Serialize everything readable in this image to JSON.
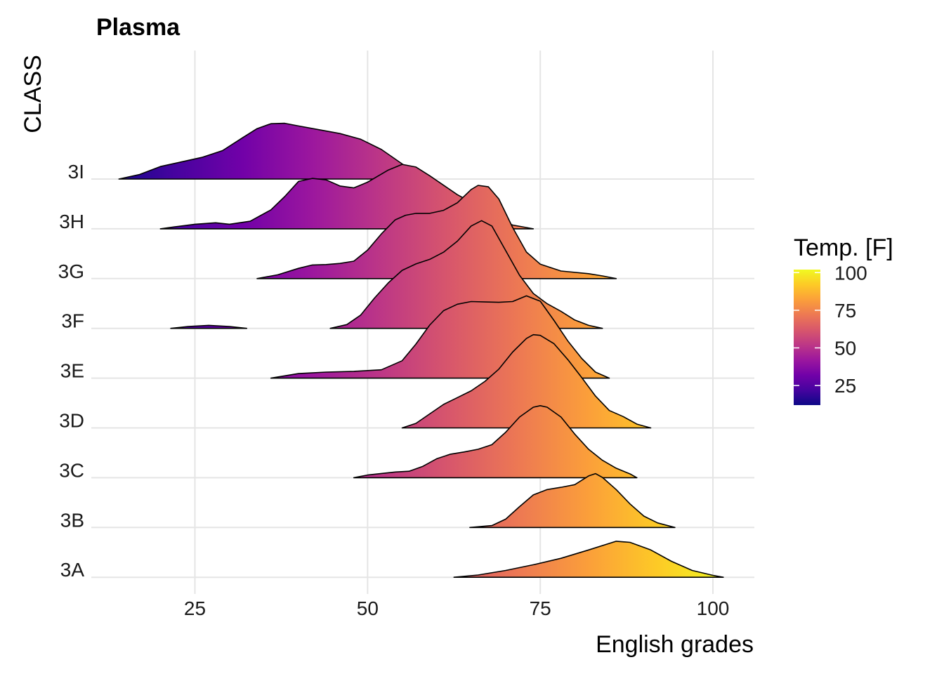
{
  "chart_data": {
    "type": "ridgeline",
    "title": "Plasma",
    "xlabel": "English grades",
    "ylabel": "CLASS",
    "xlim": [
      10,
      106
    ],
    "x_ticks": [
      25,
      50,
      75,
      100
    ],
    "categories": [
      "3A",
      "3B",
      "3C",
      "3D",
      "3E",
      "3F",
      "3G",
      "3H",
      "3I"
    ],
    "grid": true,
    "color_scale": {
      "name": "plasma",
      "title": "Temp. [F]",
      "range": [
        12,
        102
      ],
      "ticks": [
        25,
        50,
        75,
        100
      ],
      "stops": [
        "#0d0887",
        "#46039f",
        "#7201a8",
        "#9c179e",
        "#bd3786",
        "#d8576b",
        "#ed7953",
        "#fb9f3a",
        "#fdca26",
        "#f0f921"
      ]
    },
    "legend_position": "right",
    "series": [
      {
        "category": "3A",
        "points": [
          [
            62.5,
            0
          ],
          [
            66,
            0.06
          ],
          [
            70,
            0.18
          ],
          [
            74,
            0.33
          ],
          [
            78,
            0.5
          ],
          [
            82,
            0.72
          ],
          [
            86,
            0.95
          ],
          [
            88,
            0.92
          ],
          [
            91,
            0.72
          ],
          [
            94,
            0.42
          ],
          [
            97,
            0.18
          ],
          [
            100,
            0.05
          ],
          [
            101.5,
            0
          ]
        ]
      },
      {
        "category": "3B",
        "points": [
          [
            64.8,
            0
          ],
          [
            68,
            0.05
          ],
          [
            70,
            0.22
          ],
          [
            72,
            0.55
          ],
          [
            74,
            0.86
          ],
          [
            76,
            1.0
          ],
          [
            78,
            1.06
          ],
          [
            80,
            1.13
          ],
          [
            82,
            1.36
          ],
          [
            83,
            1.42
          ],
          [
            84,
            1.32
          ],
          [
            86,
            1.0
          ],
          [
            88,
            0.62
          ],
          [
            90,
            0.3
          ],
          [
            92,
            0.12
          ],
          [
            94.5,
            0
          ]
        ]
      },
      {
        "category": "3C",
        "points": [
          [
            48,
            0
          ],
          [
            50,
            0.07
          ],
          [
            54,
            0.15
          ],
          [
            56,
            0.17
          ],
          [
            58,
            0.3
          ],
          [
            60,
            0.5
          ],
          [
            62,
            0.62
          ],
          [
            64,
            0.68
          ],
          [
            66,
            0.75
          ],
          [
            68,
            0.87
          ],
          [
            70,
            1.2
          ],
          [
            72,
            1.6
          ],
          [
            74,
            1.86
          ],
          [
            75,
            1.9
          ],
          [
            76,
            1.86
          ],
          [
            78,
            1.6
          ],
          [
            80,
            1.15
          ],
          [
            82,
            0.75
          ],
          [
            84,
            0.46
          ],
          [
            86,
            0.25
          ],
          [
            88,
            0.1
          ],
          [
            89,
            0
          ]
        ]
      },
      {
        "category": "3D",
        "points": [
          [
            55,
            0
          ],
          [
            57,
            0.12
          ],
          [
            59,
            0.37
          ],
          [
            61,
            0.62
          ],
          [
            63,
            0.8
          ],
          [
            65,
            0.98
          ],
          [
            67,
            1.23
          ],
          [
            69,
            1.55
          ],
          [
            71,
            2.0
          ],
          [
            73,
            2.36
          ],
          [
            74,
            2.46
          ],
          [
            75,
            2.44
          ],
          [
            77,
            2.22
          ],
          [
            79,
            1.8
          ],
          [
            81,
            1.33
          ],
          [
            83,
            0.84
          ],
          [
            85,
            0.46
          ],
          [
            87,
            0.3
          ],
          [
            89,
            0.1
          ],
          [
            91,
            0
          ]
        ]
      },
      {
        "category": "3E",
        "points": [
          [
            36,
            0
          ],
          [
            40,
            0.12
          ],
          [
            44,
            0.16
          ],
          [
            48,
            0.18
          ],
          [
            52,
            0.22
          ],
          [
            55,
            0.46
          ],
          [
            57,
            0.9
          ],
          [
            59,
            1.4
          ],
          [
            61,
            1.78
          ],
          [
            63,
            1.95
          ],
          [
            65,
            2.02
          ],
          [
            67,
            2.01
          ],
          [
            69,
            2.0
          ],
          [
            71,
            2.02
          ],
          [
            73,
            2.17
          ],
          [
            75,
            2.03
          ],
          [
            77,
            1.52
          ],
          [
            79,
            0.98
          ],
          [
            81,
            0.52
          ],
          [
            83,
            0.16
          ],
          [
            85,
            0
          ]
        ]
      },
      {
        "category": "3F",
        "points": [
          [
            21.5,
            0
          ],
          [
            24,
            0.05
          ],
          [
            27,
            0.08
          ],
          [
            30,
            0.05
          ],
          [
            32.5,
            0
          ],
          [
            32.6,
            null
          ],
          [
            44.5,
            null
          ],
          [
            44.6,
            0
          ],
          [
            47,
            0.1
          ],
          [
            49,
            0.35
          ],
          [
            51,
            0.8
          ],
          [
            53,
            1.2
          ],
          [
            55,
            1.53
          ],
          [
            57,
            1.7
          ],
          [
            59,
            1.82
          ],
          [
            61,
            2.01
          ],
          [
            63,
            2.3
          ],
          [
            65,
            2.7
          ],
          [
            66.5,
            2.84
          ],
          [
            68,
            2.7
          ],
          [
            70,
            2.05
          ],
          [
            72,
            1.4
          ],
          [
            74,
            0.92
          ],
          [
            76,
            0.65
          ],
          [
            78,
            0.45
          ],
          [
            80,
            0.22
          ],
          [
            82,
            0.08
          ],
          [
            84,
            0
          ]
        ]
      },
      {
        "category": "3G",
        "points": [
          [
            34,
            0
          ],
          [
            37,
            0.1
          ],
          [
            40,
            0.27
          ],
          [
            42,
            0.36
          ],
          [
            44,
            0.37
          ],
          [
            46,
            0.4
          ],
          [
            48,
            0.46
          ],
          [
            50,
            0.75
          ],
          [
            52,
            1.18
          ],
          [
            54,
            1.55
          ],
          [
            55.5,
            1.67
          ],
          [
            57,
            1.72
          ],
          [
            59,
            1.72
          ],
          [
            61,
            1.8
          ],
          [
            63,
            2.0
          ],
          [
            65,
            2.35
          ],
          [
            66,
            2.46
          ],
          [
            67.5,
            2.42
          ],
          [
            69,
            2.1
          ],
          [
            71,
            1.35
          ],
          [
            73,
            0.7
          ],
          [
            75,
            0.38
          ],
          [
            78,
            0.2
          ],
          [
            82,
            0.13
          ],
          [
            84,
            0.07
          ],
          [
            86,
            0
          ]
        ]
      },
      {
        "category": "3H",
        "points": [
          [
            20,
            0
          ],
          [
            22,
            0.05
          ],
          [
            25,
            0.12
          ],
          [
            28,
            0.16
          ],
          [
            30,
            0.12
          ],
          [
            33,
            0.2
          ],
          [
            36,
            0.5
          ],
          [
            38,
            0.85
          ],
          [
            40,
            1.25
          ],
          [
            42,
            1.33
          ],
          [
            44,
            1.29
          ],
          [
            46,
            1.13
          ],
          [
            48,
            1.08
          ],
          [
            50,
            1.23
          ],
          [
            53,
            1.55
          ],
          [
            55,
            1.7
          ],
          [
            57,
            1.63
          ],
          [
            59,
            1.4
          ],
          [
            61,
            1.15
          ],
          [
            63,
            0.9
          ],
          [
            65,
            0.7
          ],
          [
            67,
            0.45
          ],
          [
            69,
            0.24
          ],
          [
            71,
            0.1
          ],
          [
            74,
            0
          ]
        ]
      },
      {
        "category": "3I",
        "points": [
          [
            14,
            0
          ],
          [
            17,
            0.12
          ],
          [
            20,
            0.33
          ],
          [
            23,
            0.45
          ],
          [
            26,
            0.57
          ],
          [
            29,
            0.75
          ],
          [
            32,
            1.1
          ],
          [
            34,
            1.33
          ],
          [
            36,
            1.46
          ],
          [
            38,
            1.47
          ],
          [
            40,
            1.4
          ],
          [
            43,
            1.3
          ],
          [
            46,
            1.2
          ],
          [
            49,
            1.05
          ],
          [
            52,
            0.78
          ],
          [
            55,
            0.4
          ],
          [
            57,
            0.12
          ],
          [
            58,
            0
          ]
        ]
      }
    ]
  }
}
